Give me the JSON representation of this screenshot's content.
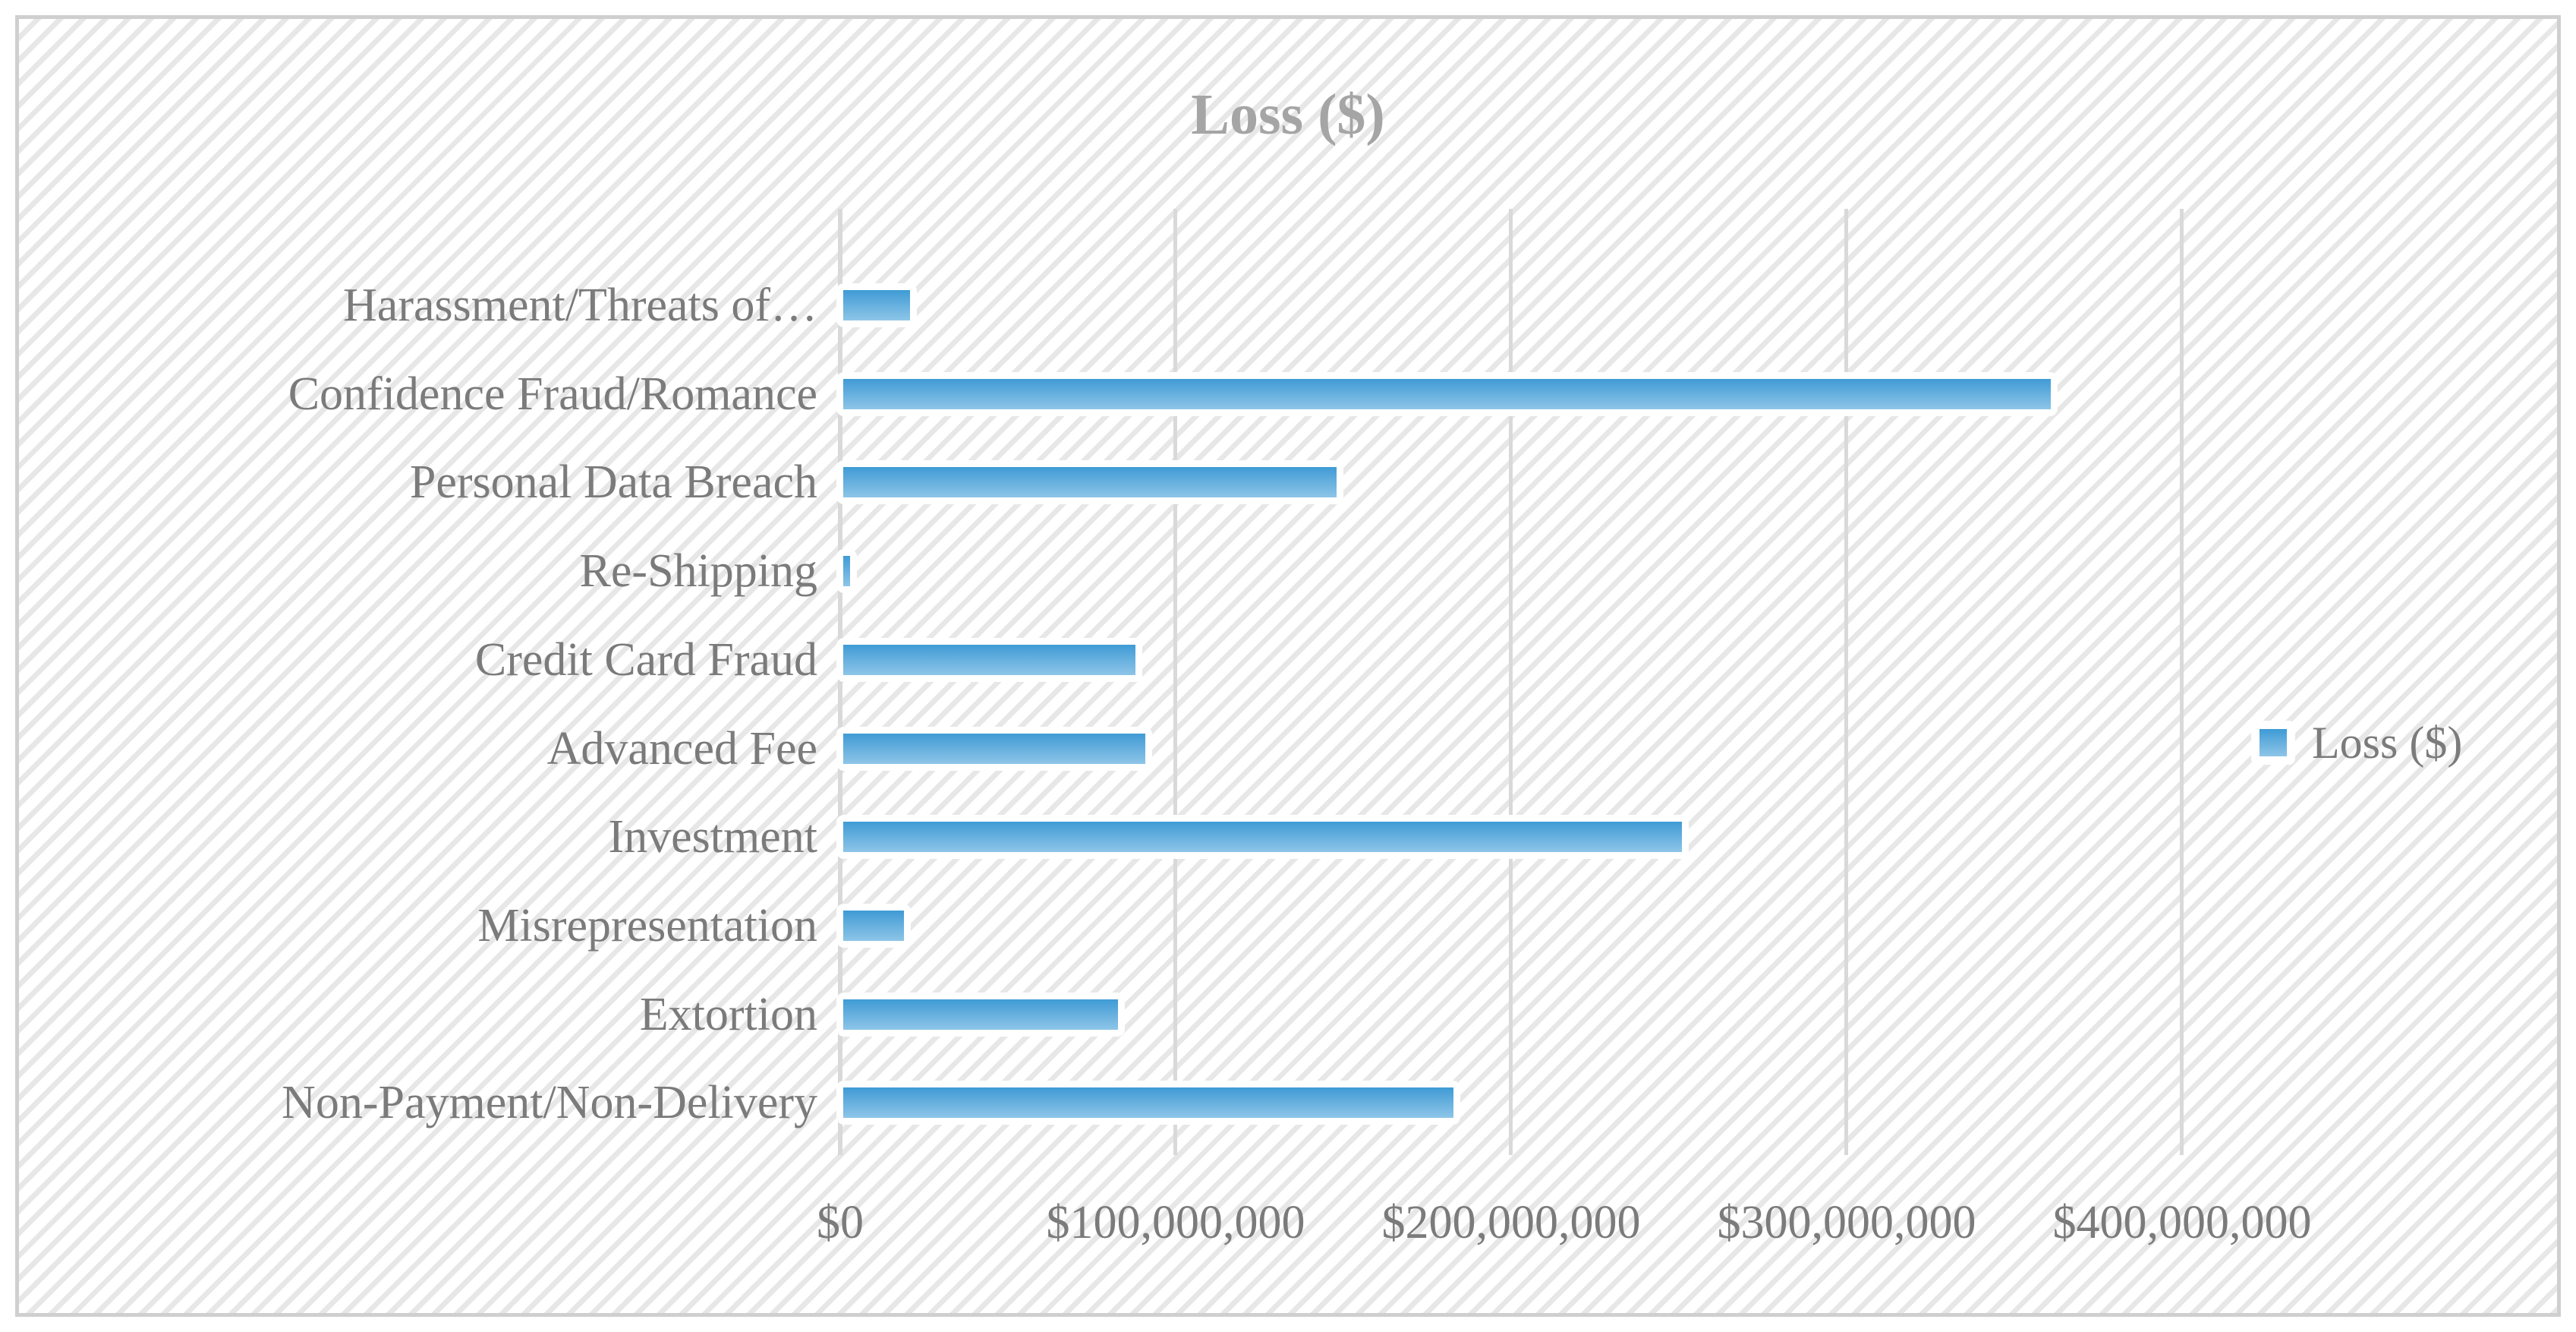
{
  "chart_data": {
    "type": "bar",
    "orientation": "horizontal-bars",
    "title": "Loss ($)",
    "categories": [
      "Harassment/Threats of…",
      "Confidence Fraud/Romance",
      "Personal Data Breach",
      "Re-Shipping",
      "Credit Card Fraud",
      "Advanced Fee",
      "Investment",
      "Misrepresentation",
      "Extortion",
      "Non-Payment/Non-Delivery"
    ],
    "series": [
      {
        "name": "Loss ($)",
        "values": [
          20000000,
          360000000,
          147000000,
          2000000,
          87000000,
          90000000,
          250000000,
          18000000,
          82000000,
          182000000
        ]
      }
    ],
    "value_axis": {
      "min": 0,
      "max": 400000000,
      "tick_interval": 100000000,
      "tick_labels": [
        "$0",
        "$100,000,000",
        "$200,000,000",
        "$300,000,000",
        "$400,000,000"
      ]
    },
    "legend": {
      "position": "right",
      "entries": [
        "Loss ($)"
      ]
    },
    "grid": "vertical-gridlines",
    "colors": {
      "bar_gradient_top": "#3f9bd5",
      "bar_gradient_bottom": "#8ec5e8",
      "bar_border": "#ffffff",
      "gridline": "#d9d9d9",
      "label_text": "#7b7b7b",
      "title_text": "#a5a5a5",
      "frame_border": "#cfcfcf",
      "hatch_stripe": "#e7e7e7",
      "background": "#ffffff"
    }
  }
}
